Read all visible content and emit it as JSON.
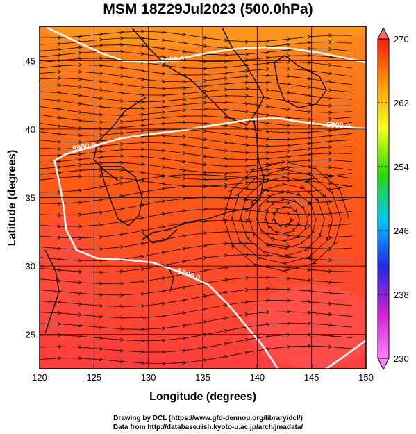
{
  "title": "MSM 18Z29Jul2023 (500.0hPa)",
  "axes": {
    "xlabel": "Longitude (degrees)",
    "ylabel": "Latitude  (degrees)",
    "xlim": [
      120,
      150
    ],
    "ylim": [
      22.5,
      47.5
    ],
    "xticks": [
      "120",
      "125",
      "130",
      "135",
      "140",
      "145",
      "150"
    ],
    "yticks": [
      "25",
      "30",
      "35",
      "40",
      "45"
    ]
  },
  "colorbar": {
    "labels": [
      "270",
      "262",
      "254",
      "246",
      "238",
      "230"
    ],
    "colors": [
      "#ff1a10",
      "#ff9900",
      "#f7ff1f",
      "#2bd900",
      "#00c4ff",
      "#1e2ae8",
      "#d21fd3",
      "#ff80ff"
    ]
  },
  "contour_label": "5900.0",
  "credits": {
    "line1": "Drawing by DCL (https://www.gfd-dennou.org/library/dcl/)",
    "line2": "Data from http://database.rish.kyoto-u.ac.jp/arch/jmadata/"
  }
}
